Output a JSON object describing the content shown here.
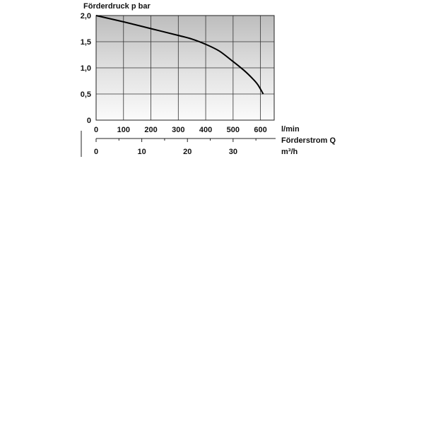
{
  "chart_data": {
    "type": "line",
    "title": "",
    "ylabel": "Förderdruck p bar",
    "xlabel": "Förderstrom Q",
    "x_unit": "l/min",
    "x2_unit": "m³/h",
    "ylim": [
      0,
      2.0
    ],
    "xlim": [
      0,
      650
    ],
    "grid": true,
    "y_ticks": [
      "2,0",
      "1,5",
      "1,0",
      "0,5",
      "0"
    ],
    "y_tick_values": [
      2.0,
      1.5,
      1.0,
      0.5,
      0
    ],
    "x_ticks": [
      "0",
      "100",
      "200",
      "300",
      "400",
      "500",
      "600"
    ],
    "x_tick_values": [
      0,
      100,
      200,
      300,
      400,
      500,
      600
    ],
    "x2_ticks": [
      "0",
      "10",
      "20",
      "30"
    ],
    "x2_tick_values": [
      0,
      10,
      20,
      30
    ],
    "series": [
      {
        "x": [
          0,
          100,
          200,
          300,
          350,
          400,
          450,
          500,
          540,
          570,
          590,
          610
        ],
        "y": [
          2.0,
          1.88,
          1.75,
          1.62,
          1.55,
          1.45,
          1.32,
          1.12,
          0.95,
          0.8,
          0.68,
          0.5
        ]
      }
    ]
  }
}
